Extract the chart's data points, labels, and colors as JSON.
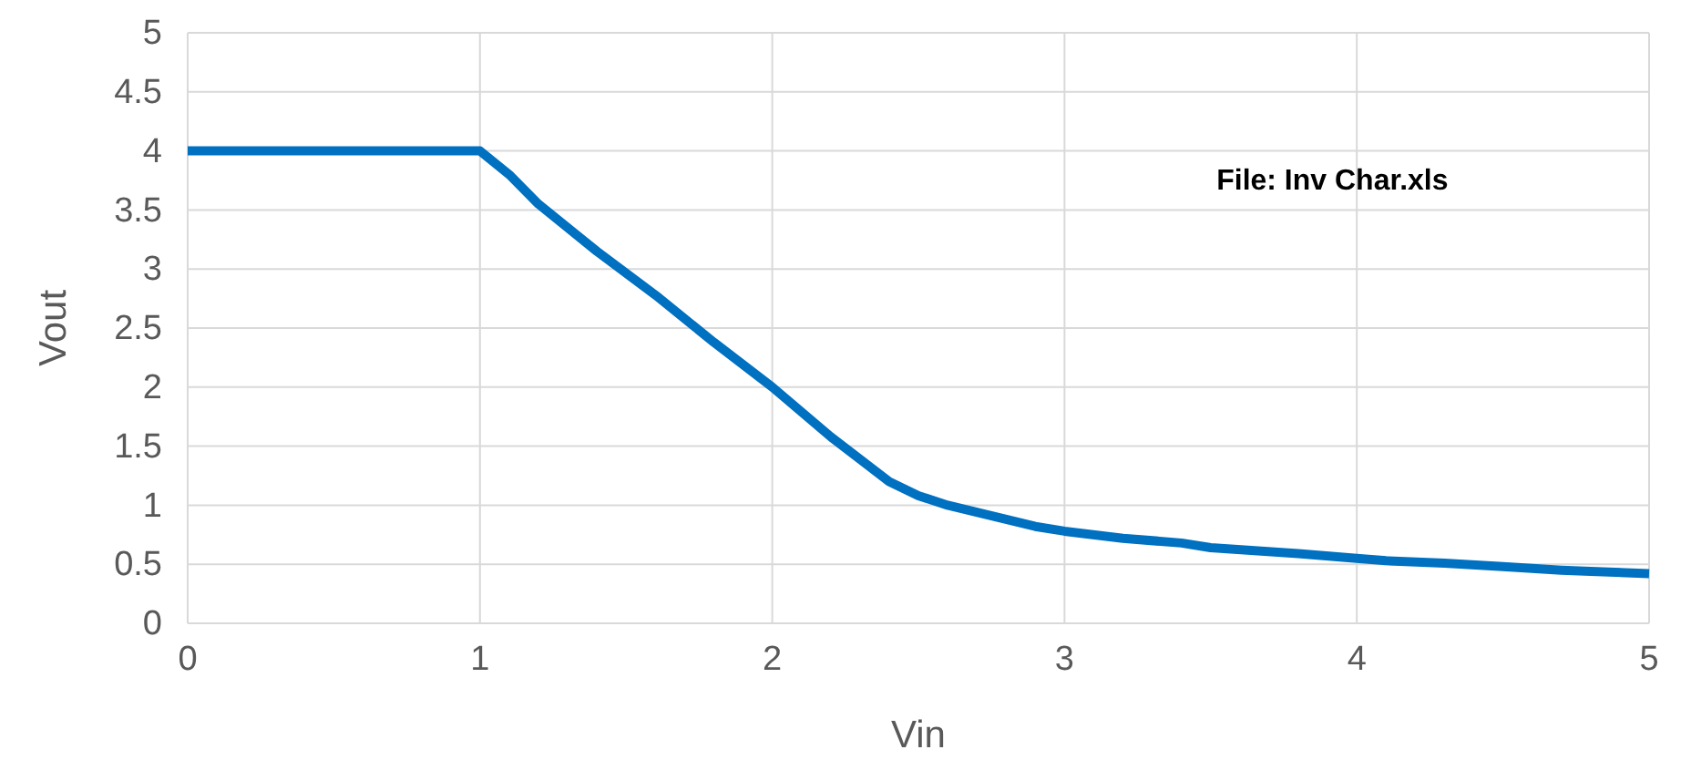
{
  "chart_data": {
    "type": "line",
    "xlabel": "Vin",
    "ylabel": "Vout",
    "annotations": [
      "File: Inv Char.xls"
    ],
    "x": [
      0,
      1,
      1.1,
      1.2,
      1.4,
      1.6,
      1.8,
      2,
      2.2,
      2.4,
      2.5,
      2.6,
      2.8,
      2.9,
      3,
      3.2,
      3.4,
      3.5,
      3.8,
      4,
      4.1,
      4.3,
      4.5,
      4.7,
      4.8,
      5
    ],
    "series": [
      {
        "color": "#0070c0",
        "values": [
          4,
          4,
          3.8,
          3.55,
          3.15,
          2.78,
          2.38,
          2,
          1.58,
          1.2,
          1.08,
          1,
          0.88,
          0.82,
          0.78,
          0.72,
          0.68,
          0.64,
          0.59,
          0.55,
          0.53,
          0.51,
          0.48,
          0.45,
          0.44,
          0.42
        ]
      }
    ],
    "xlim": [
      0,
      5
    ],
    "xticks": [
      0,
      1,
      2,
      3,
      4,
      5
    ],
    "ylim": [
      0,
      5
    ],
    "yticks": [
      0,
      0.5,
      1,
      1.5,
      2,
      2.5,
      3,
      3.5,
      4,
      4.5,
      5
    ],
    "grid": true,
    "marker": "none",
    "line_style": "solid"
  }
}
